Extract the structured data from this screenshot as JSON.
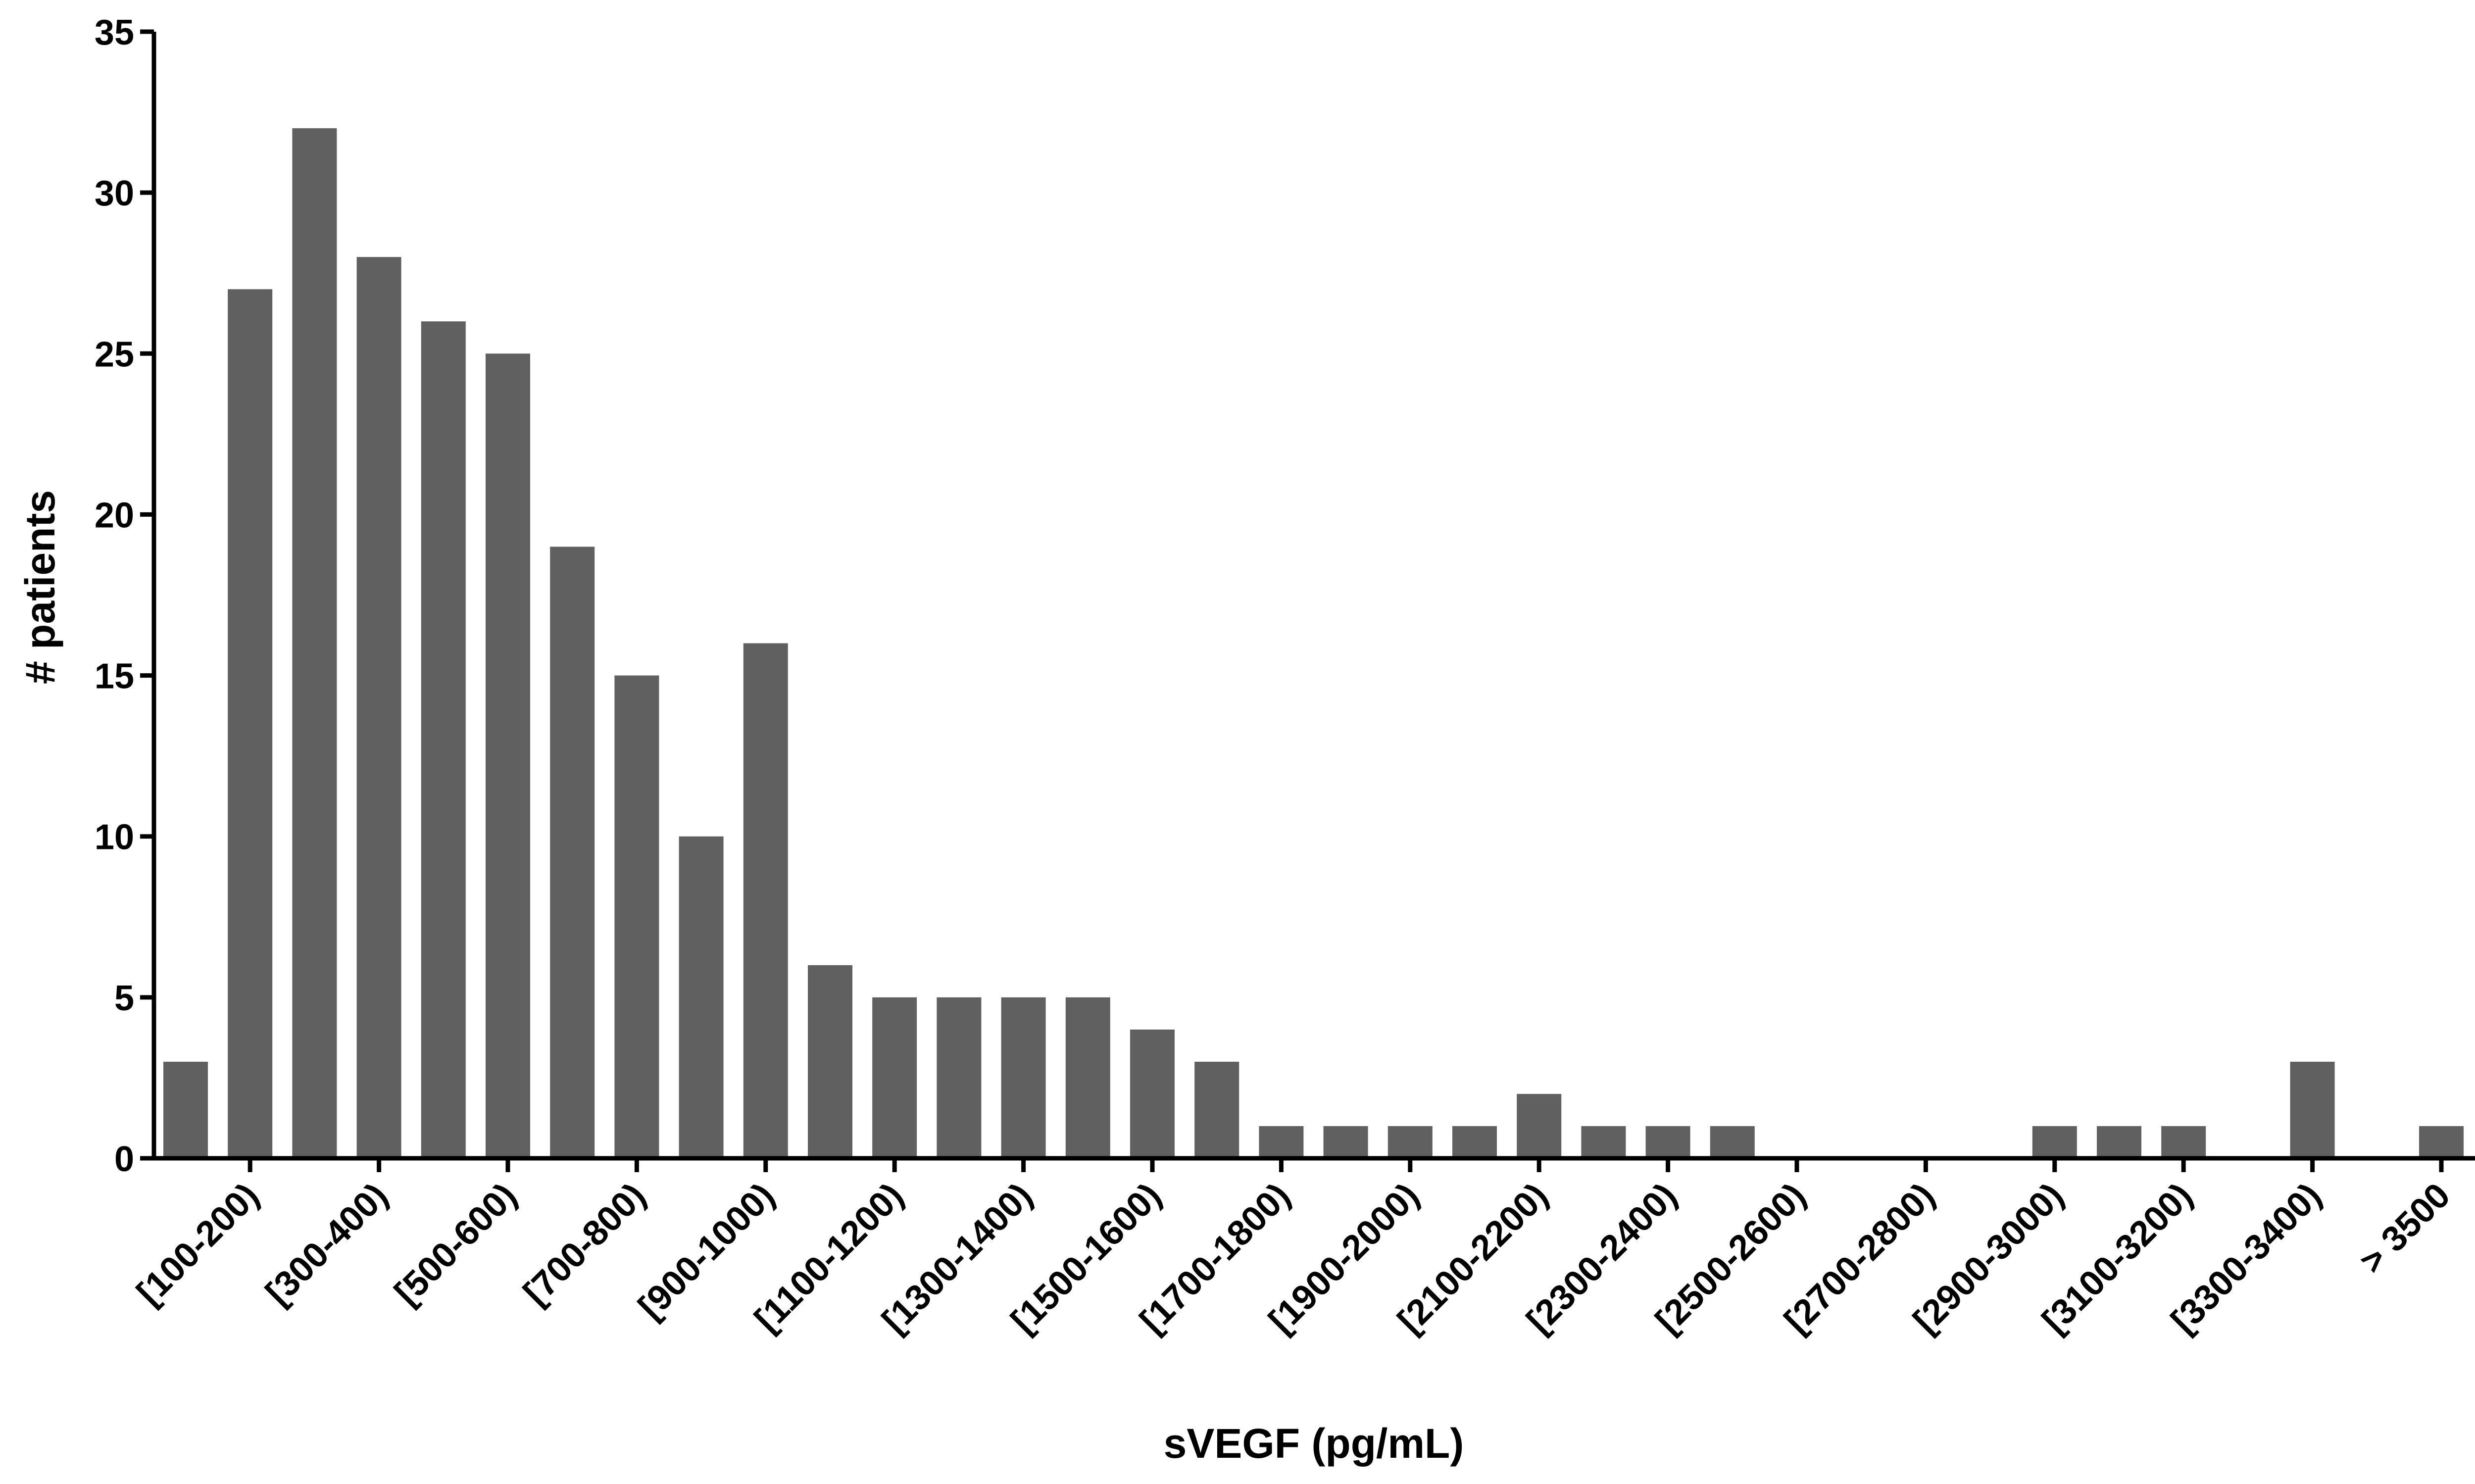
{
  "chart_data": {
    "type": "bar",
    "x_label": "sVEGF (pg/mL)",
    "y_label": "# patients",
    "categories": [
      null,
      "[100-200)",
      null,
      "[300-400)",
      null,
      "[500-600)",
      null,
      "[700-800)",
      null,
      "[900-1000)",
      null,
      "[1100-1200)",
      null,
      "[1300-1400)",
      null,
      "[1500-1600)",
      null,
      "[1700-1800)",
      null,
      "[1900-2000)",
      null,
      "[2100-2200)",
      null,
      "[2300-2400)",
      null,
      "[2500-2600)",
      null,
      "[2700-2800)",
      null,
      "[2900-3000)",
      null,
      "[3100-3200)",
      null,
      "[3300-3400)",
      null,
      "> 3500"
    ],
    "values": [
      3,
      27,
      32,
      28,
      26,
      25,
      19,
      15,
      10,
      16,
      6,
      5,
      5,
      5,
      5,
      4,
      3,
      1,
      1,
      1,
      1,
      2,
      1,
      1,
      1,
      0,
      0,
      0,
      0,
      1,
      1,
      1,
      0,
      3,
      0,
      1
    ],
    "color": "#606060",
    "ylim": [
      0,
      35
    ],
    "yticks": [
      0,
      5,
      10,
      15,
      20,
      25,
      30,
      35
    ],
    "grid": false
  }
}
